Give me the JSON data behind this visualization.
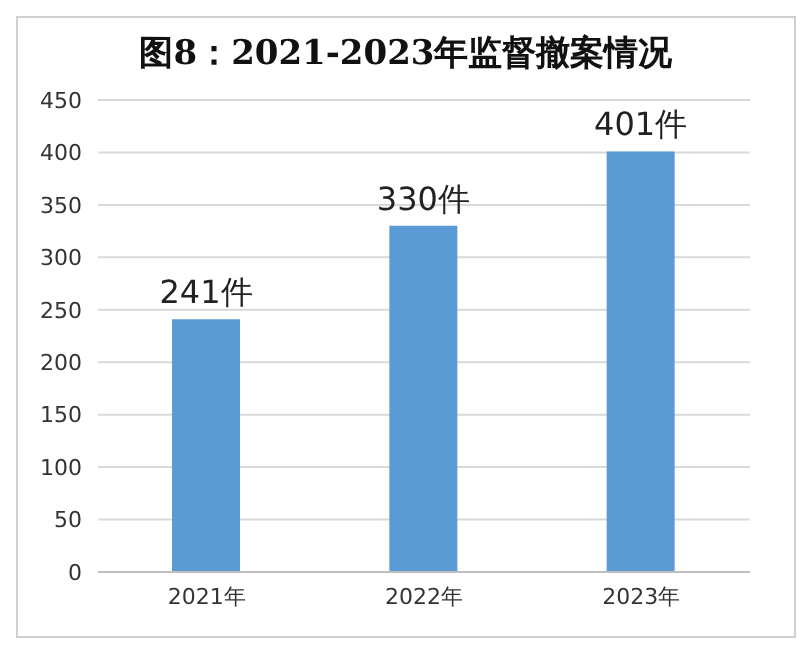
{
  "chart_data": {
    "type": "bar",
    "title": "图8：2021-2023年监督撤案情况",
    "categories": [
      "2021年",
      "2022年",
      "2023年"
    ],
    "values": [
      241,
      330,
      401
    ],
    "value_labels": [
      "241件",
      "330件",
      "401件"
    ],
    "color": "#5b9bd5",
    "ylim": [
      0,
      450
    ],
    "yticks": [
      0,
      50,
      100,
      150,
      200,
      250,
      300,
      350,
      400,
      450
    ],
    "grid": "y"
  }
}
